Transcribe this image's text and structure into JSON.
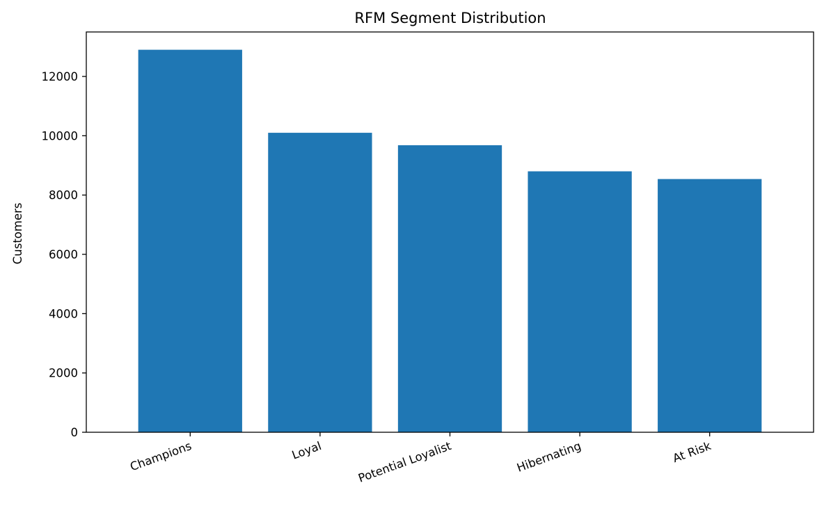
{
  "chart_data": {
    "type": "bar",
    "title": "RFM Segment Distribution",
    "xlabel": "",
    "ylabel": "Customers",
    "categories": [
      "Champions",
      "Loyal",
      "Potential Loyalist",
      "Hibernating",
      "At Risk"
    ],
    "values": [
      12900,
      10100,
      9680,
      8800,
      8540
    ],
    "ylim": [
      0,
      13500
    ],
    "yticks": [
      0,
      2000,
      4000,
      6000,
      8000,
      10000,
      12000
    ],
    "grid": false,
    "legend": "none",
    "bar_color": "#1f77b4"
  }
}
